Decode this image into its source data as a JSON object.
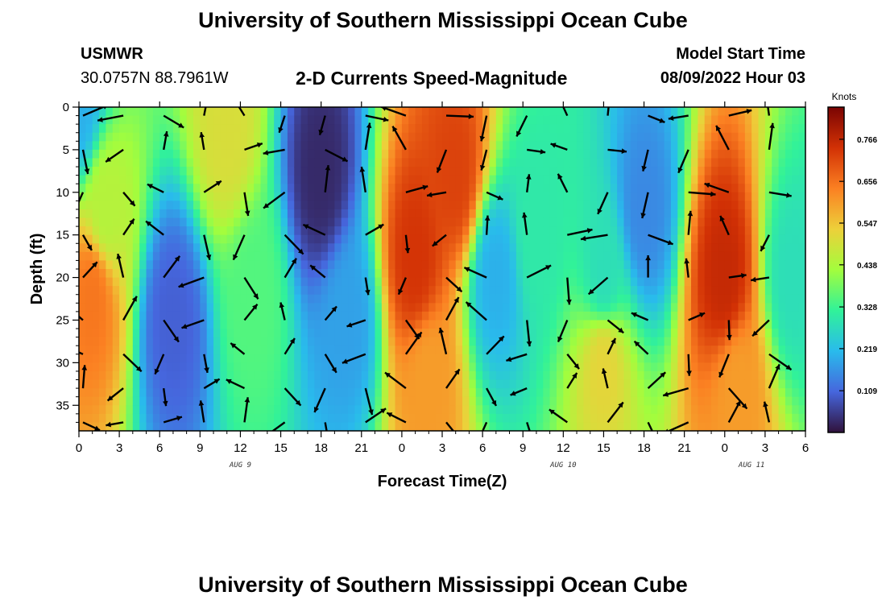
{
  "page": {
    "title": "University of Southern Mississippi Ocean Cube",
    "station": "USMWR",
    "coords": "30.0757N  88.7961W",
    "model_start_label": "Model Start Time",
    "model_start_value": "08/09/2022 Hour 03",
    "footer_title": "University of Southern Mississippi Ocean Cube"
  },
  "chart_data": {
    "type": "heatmap",
    "title": "2-D Currents Speed-Magnitude",
    "xlabel": "Forecast Time(Z)",
    "ylabel": "Depth (ft)",
    "x_ticks": [
      "0",
      "3",
      "6",
      "9",
      "12",
      "15",
      "18",
      "21",
      "0",
      "3",
      "6",
      "9",
      "12",
      "15",
      "18",
      "21",
      "0",
      "3",
      "6"
    ],
    "x_range_hours": [
      0,
      54
    ],
    "y_ticks": [
      "0",
      "5",
      "10",
      "15",
      "20",
      "25",
      "30",
      "35"
    ],
    "y_range": [
      0,
      38
    ],
    "y_inverted": true,
    "date_labels": [
      {
        "text": "AUG 9",
        "hour": 12
      },
      {
        "text": "AUG 10",
        "hour": 36
      },
      {
        "text": "AUG 11",
        "hour": 50
      }
    ],
    "colorbar": {
      "unit": "Knots",
      "ticks": [
        "0.766",
        "0.656",
        "0.547",
        "0.438",
        "0.328",
        "0.219",
        "0.109"
      ],
      "tick_values": [
        0.766,
        0.656,
        0.547,
        0.438,
        0.328,
        0.219,
        0.109
      ],
      "range": [
        0,
        0.85
      ],
      "colors": [
        "#30123b",
        "#4666dd",
        "#29bbec",
        "#31f299",
        "#a3fd3d",
        "#edd03a",
        "#fb8022",
        "#d23105",
        "#7a0403"
      ]
    },
    "speed_zones": [
      {
        "t": 0,
        "d": 0,
        "v": 0.2
      },
      {
        "t": 1,
        "d": 22,
        "v": 0.65
      },
      {
        "t": 2,
        "d": 12,
        "v": 0.45
      },
      {
        "t": 11,
        "d": 3,
        "v": 0.5
      },
      {
        "t": 13,
        "d": 22,
        "v": 0.35
      },
      {
        "t": 7,
        "d": 25,
        "v": 0.1
      },
      {
        "t": 18,
        "d": 8,
        "v": 0.03
      },
      {
        "t": 20,
        "d": 25,
        "v": 0.18
      },
      {
        "t": 25,
        "d": 18,
        "v": 0.74
      },
      {
        "t": 26,
        "d": 32,
        "v": 0.6
      },
      {
        "t": 28,
        "d": 8,
        "v": 0.72
      },
      {
        "t": 31,
        "d": 20,
        "v": 0.2
      },
      {
        "t": 34,
        "d": 15,
        "v": 0.3
      },
      {
        "t": 39,
        "d": 20,
        "v": 0.28
      },
      {
        "t": 39,
        "d": 30,
        "v": 0.52
      },
      {
        "t": 42,
        "d": 12,
        "v": 0.15
      },
      {
        "t": 48,
        "d": 20,
        "v": 0.76
      },
      {
        "t": 49,
        "d": 33,
        "v": 0.6
      },
      {
        "t": 53,
        "d": 20,
        "v": 0.28
      }
    ]
  }
}
